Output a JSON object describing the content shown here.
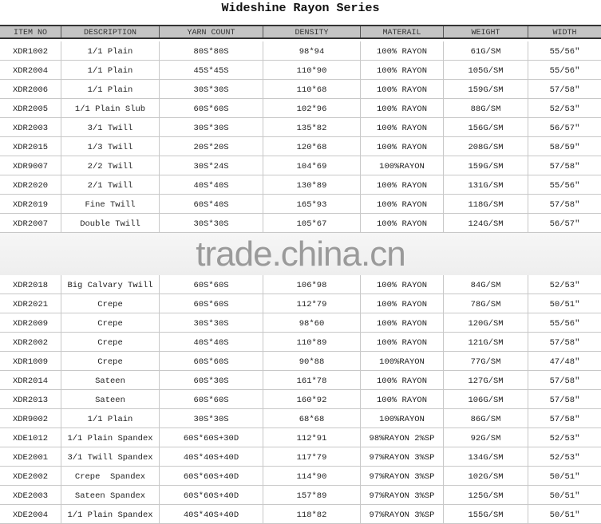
{
  "title": "Wideshine Rayon Series",
  "watermark": "trade.china.cn",
  "columns": [
    "ITEM NO",
    "DESCRIPTION",
    "YARN COUNT",
    "DENSITY",
    "MATERAIL",
    "WEIGHT",
    "WIDTH"
  ],
  "rows_top": [
    [
      "XDR1002",
      "1/1 Plain",
      "80S*80S",
      "98*94",
      "100% RAYON",
      "61G/SM",
      "55/56\""
    ],
    [
      "XDR2004",
      "1/1 Plain",
      "45S*45S",
      "110*90",
      "100% RAYON",
      "105G/SM",
      "55/56\""
    ],
    [
      "XDR2006",
      "1/1 Plain",
      "30S*30S",
      "110*68",
      "100% RAYON",
      "159G/SM",
      "57/58\""
    ],
    [
      "XDR2005",
      "1/1 Plain Slub",
      "60S*60S",
      "102*96",
      "100% RAYON",
      "88G/SM",
      "52/53\""
    ],
    [
      "XDR2003",
      "3/1 Twill",
      "30S*30S",
      "135*82",
      "100% RAYON",
      "156G/SM",
      "56/57\""
    ],
    [
      "XDR2015",
      "1/3 Twill",
      "20S*20S",
      "120*68",
      "100% RAYON",
      "208G/SM",
      "58/59\""
    ],
    [
      "XDR9007",
      "2/2 Twill",
      "30S*24S",
      "104*69",
      "100%RAYON",
      "159G/SM",
      "57/58\""
    ],
    [
      "XDR2020",
      "2/1 Twill",
      "40S*40S",
      "130*89",
      "100% RAYON",
      "131G/SM",
      "55/56\""
    ],
    [
      "XDR2019",
      "Fine Twill",
      "60S*40S",
      "165*93",
      "100% RAYON",
      "118G/SM",
      "57/58\""
    ],
    [
      "XDR2007",
      "Double Twill",
      "30S*30S",
      "105*67",
      "100% RAYON",
      "124G/SM",
      "56/57\""
    ]
  ],
  "rows_bottom": [
    [
      "XDR2018",
      "Big Calvary Twill",
      "60S*60S",
      "106*98",
      "100% RAYON",
      "84G/SM",
      "52/53\""
    ],
    [
      "XDR2021",
      "Crepe",
      "60S*60S",
      "112*79",
      "100% RAYON",
      "78G/SM",
      "50/51\""
    ],
    [
      "XDR2009",
      "Crepe",
      "30S*30S",
      "98*60",
      "100% RAYON",
      "120G/SM",
      "55/56\""
    ],
    [
      "XDR2002",
      "Crepe",
      "40S*40S",
      "110*89",
      "100% RAYON",
      "121G/SM",
      "57/58\""
    ],
    [
      "XDR1009",
      "Crepe",
      "60S*60S",
      "90*88",
      "100%RAYON",
      "77G/SM",
      "47/48\""
    ],
    [
      "XDR2014",
      "Sateen",
      "60S*30S",
      "161*78",
      "100% RAYON",
      "127G/SM",
      "57/58\""
    ],
    [
      "XDR2013",
      "Sateen",
      "60S*60S",
      "160*92",
      "100% RAYON",
      "106G/SM",
      "57/58\""
    ],
    [
      "XDR9002",
      "1/1 Plain",
      "30S*30S",
      "68*68",
      "100%RAYON",
      "86G/SM",
      "57/58\""
    ],
    [
      "XDE1012",
      "1/1 Plain Spandex",
      "60S*60S+30D",
      "112*91",
      "98%RAYON 2%SP",
      "92G/SM",
      "52/53\""
    ],
    [
      "XDE2001",
      "3/1 Twill Spandex",
      "40S*40S+40D",
      "117*79",
      "97%RAYON 3%SP",
      "134G/SM",
      "52/53\""
    ],
    [
      "XDE2002",
      "Crepe  Spandex",
      "60S*60S+40D",
      "114*90",
      "97%RAYON 3%SP",
      "102G/SM",
      "50/51\""
    ],
    [
      "XDE2003",
      "Sateen Spandex",
      "60S*60S+40D",
      "157*89",
      "97%RAYON 3%SP",
      "125G/SM",
      "50/51\""
    ],
    [
      "XDE2004",
      "1/1 Plain Spandex",
      "40S*40S+40D",
      "118*82",
      "97%RAYON 3%SP",
      "155G/SM",
      "50/51\""
    ]
  ]
}
